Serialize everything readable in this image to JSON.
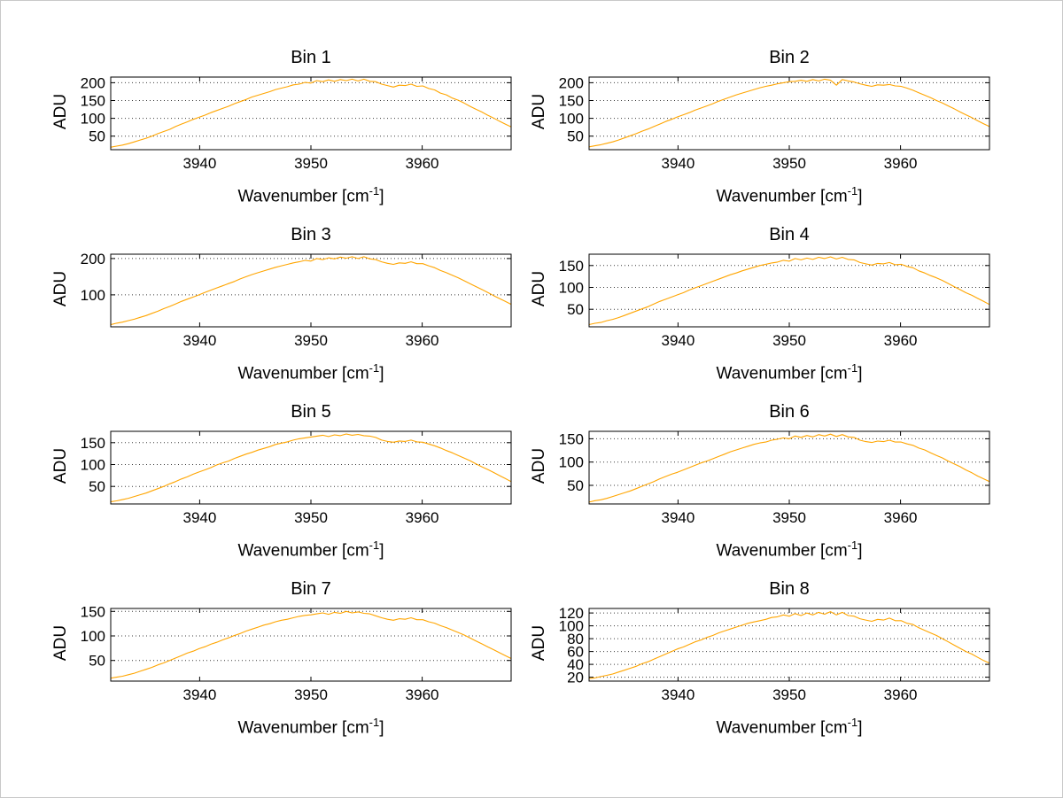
{
  "figure": {
    "background": "#ffffff",
    "layout": "4 rows x 2 columns of spectra subplots",
    "grid": "horizontal dotted gridlines at y ticks"
  },
  "chart_data": [
    {
      "type": "line",
      "title": "Bin 1",
      "ylabel": "ADU",
      "xlabel_pre": "Wavenumber [cm",
      "xlabel_sup": "-1",
      "xlabel_post": "]",
      "line_color": "#FFA500",
      "xlim": [
        3932,
        3968
      ],
      "ylim": [
        12,
        216
      ],
      "xticks": [
        3940,
        3950,
        3960
      ],
      "yticks": [
        50,
        100,
        150,
        200
      ],
      "x_sampling": "69 points evenly spaced across xlim",
      "y": [
        19,
        22,
        25,
        29,
        34,
        39,
        44,
        50,
        57,
        63,
        69,
        77,
        84,
        90,
        97,
        103,
        109,
        116,
        122,
        128,
        134,
        141,
        147,
        153,
        160,
        165,
        170,
        175,
        181,
        185,
        189,
        194,
        196,
        201,
        199,
        206,
        203,
        208,
        204,
        209,
        206,
        210,
        205,
        210,
        204,
        203,
        196,
        192,
        188,
        193,
        192,
        196,
        190,
        191,
        184,
        180,
        171,
        166,
        157,
        151,
        143,
        134,
        126,
        118,
        109,
        101,
        92,
        84,
        76
      ]
    },
    {
      "type": "line",
      "title": "Bin 2",
      "ylabel": "ADU",
      "xlabel_pre": "Wavenumber [cm",
      "xlabel_sup": "-1",
      "xlabel_post": "]",
      "line_color": "#FFA500",
      "xlim": [
        3932,
        3968
      ],
      "ylim": [
        12,
        216
      ],
      "xticks": [
        3940,
        3950,
        3960
      ],
      "yticks": [
        50,
        100,
        150,
        200
      ],
      "x_sampling": "69 points evenly spaced across xlim",
      "y": [
        20,
        23,
        26,
        30,
        34,
        39,
        45,
        51,
        57,
        64,
        70,
        77,
        84,
        91,
        97,
        104,
        110,
        116,
        123,
        129,
        135,
        141,
        148,
        154,
        160,
        166,
        171,
        176,
        181,
        186,
        190,
        193,
        197,
        200,
        203,
        204,
        207,
        204,
        209,
        205,
        210,
        207,
        193,
        209,
        205,
        202,
        197,
        193,
        190,
        194,
        193,
        195,
        191,
        190,
        185,
        179,
        172,
        165,
        158,
        150,
        143,
        135,
        127,
        118,
        110,
        102,
        93,
        85,
        77
      ]
    },
    {
      "type": "line",
      "title": "Bin 3",
      "ylabel": "ADU",
      "xlabel_pre": "Wavenumber [cm",
      "xlabel_sup": "-1",
      "xlabel_post": "]",
      "line_color": "#FFA500",
      "xlim": [
        3932,
        3968
      ],
      "ylim": [
        12,
        212
      ],
      "xticks": [
        3940,
        3950,
        3960
      ],
      "yticks": [
        100,
        200
      ],
      "x_sampling": "69 points evenly spaced across xlim",
      "y": [
        18,
        22,
        25,
        29,
        33,
        38,
        43,
        49,
        55,
        62,
        68,
        75,
        82,
        88,
        94,
        100,
        107,
        113,
        119,
        125,
        131,
        137,
        144,
        150,
        156,
        161,
        166,
        171,
        176,
        180,
        184,
        188,
        191,
        195,
        193,
        200,
        197,
        202,
        199,
        204,
        201,
        205,
        200,
        205,
        199,
        197,
        191,
        187,
        184,
        188,
        187,
        191,
        186,
        186,
        180,
        175,
        167,
        161,
        154,
        147,
        139,
        131,
        123,
        115,
        107,
        98,
        90,
        82,
        74
      ]
    },
    {
      "type": "line",
      "title": "Bin 4",
      "ylabel": "ADU",
      "xlabel_pre": "Wavenumber [cm",
      "xlabel_sup": "-1",
      "xlabel_post": "]",
      "line_color": "#FFA500",
      "xlim": [
        3932,
        3968
      ],
      "ylim": [
        10,
        176
      ],
      "xticks": [
        3940,
        3950,
        3960
      ],
      "yticks": [
        50,
        100,
        150
      ],
      "x_sampling": "69 points evenly spaced across xlim",
      "y": [
        15,
        18,
        20,
        24,
        27,
        31,
        36,
        41,
        46,
        51,
        56,
        62,
        68,
        73,
        78,
        83,
        88,
        94,
        99,
        104,
        109,
        114,
        119,
        124,
        129,
        133,
        138,
        142,
        146,
        150,
        153,
        156,
        158,
        162,
        160,
        166,
        163,
        167,
        164,
        169,
        166,
        170,
        165,
        169,
        164,
        163,
        157,
        154,
        151,
        155,
        154,
        157,
        152,
        153,
        148,
        145,
        138,
        133,
        127,
        122,
        116,
        109,
        102,
        95,
        88,
        82,
        75,
        68,
        61
      ]
    },
    {
      "type": "line",
      "title": "Bin 5",
      "ylabel": "ADU",
      "xlabel_pre": "Wavenumber [cm",
      "xlabel_sup": "-1",
      "xlabel_post": "]",
      "line_color": "#FFA500",
      "xlim": [
        3932,
        3968
      ],
      "ylim": [
        10,
        176
      ],
      "xticks": [
        3940,
        3950,
        3960
      ],
      "yticks": [
        50,
        100,
        150
      ],
      "x_sampling": "69 points evenly spaced across xlim",
      "y": [
        15,
        17,
        20,
        23,
        27,
        31,
        35,
        40,
        45,
        50,
        56,
        61,
        67,
        72,
        78,
        83,
        88,
        93,
        99,
        104,
        108,
        114,
        119,
        124,
        128,
        133,
        137,
        141,
        146,
        149,
        152,
        156,
        159,
        161,
        163,
        165,
        167,
        164,
        168,
        166,
        170,
        167,
        169,
        166,
        165,
        162,
        156,
        153,
        151,
        154,
        153,
        156,
        152,
        151,
        147,
        143,
        138,
        132,
        127,
        121,
        115,
        109,
        102,
        95,
        89,
        82,
        75,
        68,
        61
      ]
    },
    {
      "type": "line",
      "title": "Bin 6",
      "ylabel": "ADU",
      "xlabel_pre": "Wavenumber [cm",
      "xlabel_sup": "-1",
      "xlabel_post": "]",
      "line_color": "#FFA500",
      "xlim": [
        3932,
        3968
      ],
      "ylim": [
        10,
        166
      ],
      "xticks": [
        3940,
        3950,
        3960
      ],
      "yticks": [
        50,
        100,
        150
      ],
      "x_sampling": "69 points evenly spaced across xlim",
      "y": [
        14,
        17,
        19,
        22,
        26,
        30,
        34,
        38,
        43,
        48,
        53,
        58,
        64,
        69,
        74,
        78,
        83,
        88,
        93,
        98,
        102,
        107,
        112,
        117,
        122,
        126,
        130,
        134,
        138,
        141,
        143,
        147,
        149,
        152,
        150,
        156,
        153,
        157,
        154,
        159,
        156,
        160,
        155,
        159,
        154,
        153,
        147,
        144,
        142,
        145,
        144,
        147,
        143,
        143,
        139,
        136,
        130,
        126,
        120,
        114,
        109,
        102,
        96,
        90,
        83,
        77,
        70,
        64,
        58
      ]
    },
    {
      "type": "line",
      "title": "Bin 7",
      "ylabel": "ADU",
      "xlabel_pre": "Wavenumber [cm",
      "xlabel_sup": "-1",
      "xlabel_post": "]",
      "line_color": "#FFA500",
      "xlim": [
        3932,
        3968
      ],
      "ylim": [
        8,
        156
      ],
      "xticks": [
        3940,
        3950,
        3960
      ],
      "yticks": [
        50,
        100,
        150
      ],
      "x_sampling": "69 points evenly spaced across xlim",
      "y": [
        14,
        16,
        18,
        21,
        24,
        28,
        32,
        36,
        41,
        45,
        50,
        55,
        60,
        65,
        69,
        74,
        78,
        83,
        87,
        92,
        96,
        101,
        105,
        110,
        114,
        118,
        122,
        125,
        129,
        132,
        134,
        137,
        140,
        142,
        143,
        145,
        147,
        144,
        148,
        146,
        150,
        147,
        149,
        146,
        145,
        141,
        137,
        134,
        132,
        135,
        134,
        137,
        133,
        133,
        129,
        126,
        121,
        117,
        112,
        107,
        102,
        96,
        90,
        84,
        78,
        72,
        66,
        60,
        54
      ]
    },
    {
      "type": "line",
      "title": "Bin 8",
      "ylabel": "ADU",
      "xlabel_pre": "Wavenumber [cm",
      "xlabel_sup": "-1",
      "xlabel_post": "]",
      "line_color": "#FFA500",
      "xlim": [
        3932,
        3968
      ],
      "ylim": [
        14,
        127
      ],
      "xticks": [
        3940,
        3950,
        3960
      ],
      "yticks": [
        20,
        40,
        60,
        80,
        100,
        120
      ],
      "x_sampling": "69 points evenly spaced across xlim",
      "y": [
        18,
        19,
        21,
        23,
        25,
        28,
        31,
        34,
        37,
        41,
        44,
        48,
        52,
        56,
        60,
        64,
        67,
        71,
        75,
        78,
        82,
        85,
        89,
        92,
        95,
        98,
        101,
        104,
        106,
        108,
        110,
        113,
        114,
        117,
        115,
        119,
        116,
        120,
        117,
        121,
        118,
        122,
        117,
        121,
        116,
        115,
        111,
        109,
        107,
        110,
        109,
        112,
        108,
        108,
        104,
        102,
        97,
        93,
        89,
        85,
        80,
        75,
        70,
        65,
        60,
        56,
        51,
        46,
        42
      ]
    }
  ]
}
